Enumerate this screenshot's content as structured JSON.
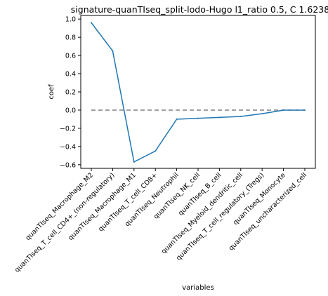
{
  "chart_data": {
    "type": "line",
    "title": "signature-quanTIseq_split-lodo-Hugo l1_ratio 0.5, C 1.6238",
    "xlabel": "variables",
    "ylabel": "coef",
    "categories": [
      "quanTIseq_Macrophage_M2",
      "quanTIseq_T_cell_CD4+_(non-regulatory)",
      "quanTIseq_Macrophage_M1",
      "quanTIseq_T_cell_CD8+",
      "quanTIseq_Neutrophil",
      "quanTIseq_NK_cell",
      "quanTIseq_B_cell",
      "quanTIseq_Myeloid_dendritic_cell",
      "quanTIseq_T_cell_regulatory_(Tregs)",
      "quanTIseq_Monocyte",
      "quanTIseq_uncharacterized_cell"
    ],
    "values": [
      0.96,
      0.65,
      -0.57,
      -0.45,
      -0.1,
      -0.09,
      -0.08,
      -0.07,
      -0.04,
      0.0,
      0.0
    ],
    "ylim": [
      -0.64,
      1.04
    ],
    "yticks": [
      -0.6,
      -0.4,
      -0.2,
      0.0,
      0.2,
      0.4,
      0.6,
      0.8,
      1.0
    ],
    "ytick_labels": [
      "−0.6",
      "−0.4",
      "−0.2",
      "0.0",
      "0.2",
      "0.4",
      "0.6",
      "0.8",
      "1.0"
    ],
    "reference_line": {
      "y": 0.0,
      "style": "dashed",
      "color": "#808080"
    },
    "series_color": "#1f77b4",
    "grid": false,
    "legend": "none"
  }
}
